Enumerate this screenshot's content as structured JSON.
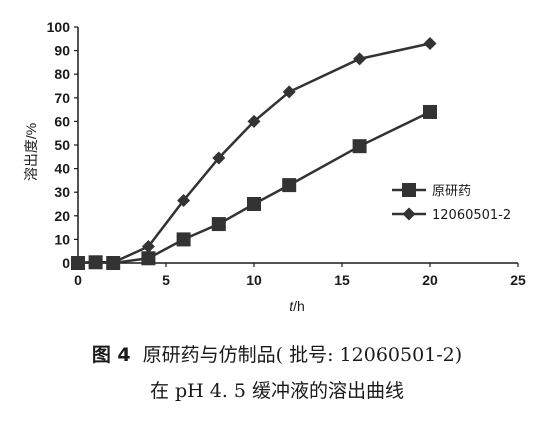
{
  "chart_data": {
    "type": "line",
    "ylabel": "溶出度/%",
    "xlabel_italic": "t",
    "xlabel_unit": "/h",
    "xlim": [
      0,
      25
    ],
    "ylim": [
      0,
      100
    ],
    "xticks": [
      0,
      5,
      10,
      15,
      20,
      25
    ],
    "yticks": [
      0,
      10,
      20,
      30,
      40,
      50,
      60,
      70,
      80,
      90,
      100
    ],
    "grid": false,
    "legend_position": "right",
    "series": [
      {
        "name": "原研药",
        "marker": "square",
        "color": "#333333",
        "x": [
          0,
          1,
          2,
          4,
          6,
          8,
          10,
          12,
          16,
          20
        ],
        "y": [
          0,
          0.3,
          0,
          2,
          10,
          16.5,
          25,
          33,
          49.5,
          64
        ]
      },
      {
        "name": "12060501-2",
        "marker": "diamond",
        "color": "#333333",
        "x": [
          0,
          1,
          2,
          4,
          6,
          8,
          10,
          12,
          16,
          20
        ],
        "y": [
          0,
          0.5,
          0.2,
          7,
          26.5,
          44.5,
          60,
          72.5,
          86.5,
          93
        ]
      }
    ]
  },
  "caption": {
    "figure_label": "图 4",
    "line1": "原研药与仿制品( 批号: 12060501-2)",
    "line2": "在 pH 4. 5 缓冲液的溶出曲线"
  }
}
